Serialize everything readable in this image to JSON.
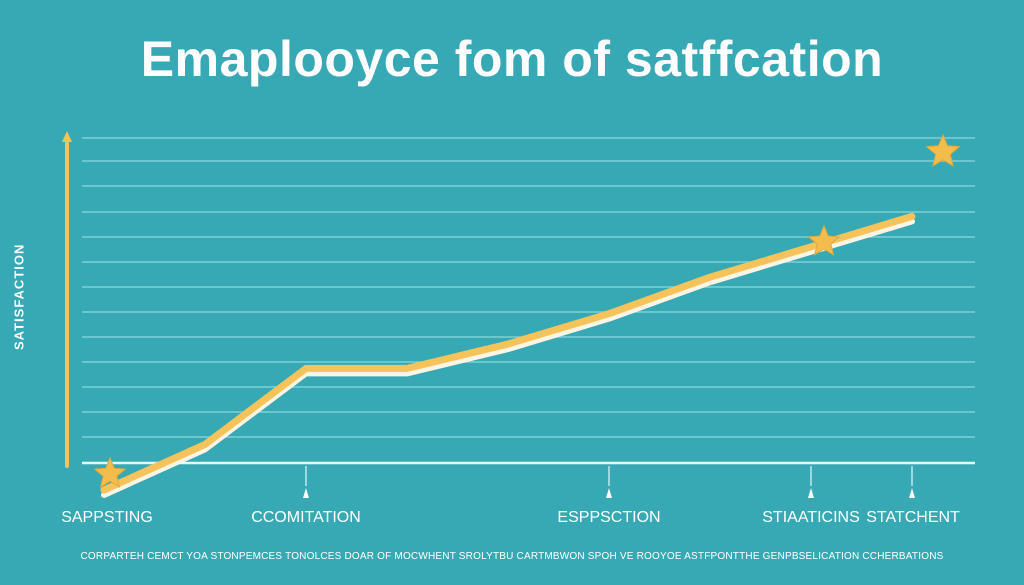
{
  "chart_data": {
    "type": "line",
    "title": "Emaplooyce fom of satffcation",
    "ylabel": "SATISFACTION",
    "xlabel": "",
    "x": [
      0,
      1,
      2,
      3,
      4,
      5,
      6,
      7,
      8
    ],
    "values": [
      0,
      15,
      40,
      40,
      48,
      58,
      70,
      80,
      90
    ],
    "ylim": [
      0,
      100
    ],
    "grid": true,
    "categories": [
      {
        "label": "SAPPSTING",
        "pos": 0
      },
      {
        "label": "CCOMITATION",
        "pos": 2
      },
      {
        "label": "ESPPSCTION",
        "pos": 5
      },
      {
        "label": "STIAATICINS",
        "pos": 7
      },
      {
        "label": "STATCHENT",
        "pos": 8
      }
    ],
    "star_indices": [
      0,
      7
    ],
    "top_star": true,
    "line_color": "#f5c35a",
    "star_color": "#f3bd4e",
    "grid_color": "#7fcfd6"
  },
  "footnote": "CORPARTEH CEMCT YOA STONPEMCES TONOLCES DOAR OF MOCWHENT SROLYTBU CARTMBWON SPOH VE ROOYOE ASTFPONTTHE GENPBSELICATION CCHERBATIONS"
}
